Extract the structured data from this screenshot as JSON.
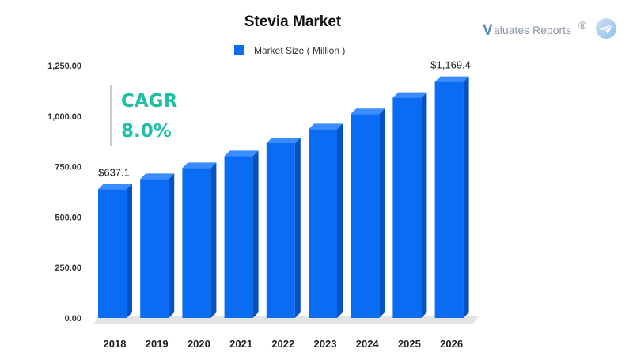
{
  "chart_data": {
    "type": "bar",
    "title": "Stevia Market",
    "categories": [
      "2018",
      "2019",
      "2020",
      "2021",
      "2022",
      "2023",
      "2024",
      "2025",
      "2026"
    ],
    "series": [
      {
        "name": "Market Size ( Million )",
        "values": [
          637.1,
          688,
          743,
          802,
          866,
          935,
          1010,
          1091,
          1169.4
        ],
        "color": "#0a6cf2"
      }
    ],
    "data_labels": [
      {
        "index": 0,
        "text": "$637.1"
      },
      {
        "index": 8,
        "text": "$1,169.4"
      }
    ],
    "ylim": [
      0,
      1250
    ],
    "yticks": [
      "0.00",
      "250.00",
      "500.00",
      "750.00",
      "1,000.00",
      "1,250.00"
    ],
    "yticks_values": [
      0,
      250,
      500,
      750,
      1000,
      1250
    ],
    "legend_position": "top-center",
    "grid": false,
    "xlabel": "",
    "ylabel": ""
  },
  "cagr": {
    "label": "CAGR",
    "value": "8.0%",
    "color": "#1fbfa6"
  },
  "brand": {
    "initial": "V",
    "text": "aluates Reports",
    "mark": "®",
    "icon": "paper-plane-icon"
  }
}
